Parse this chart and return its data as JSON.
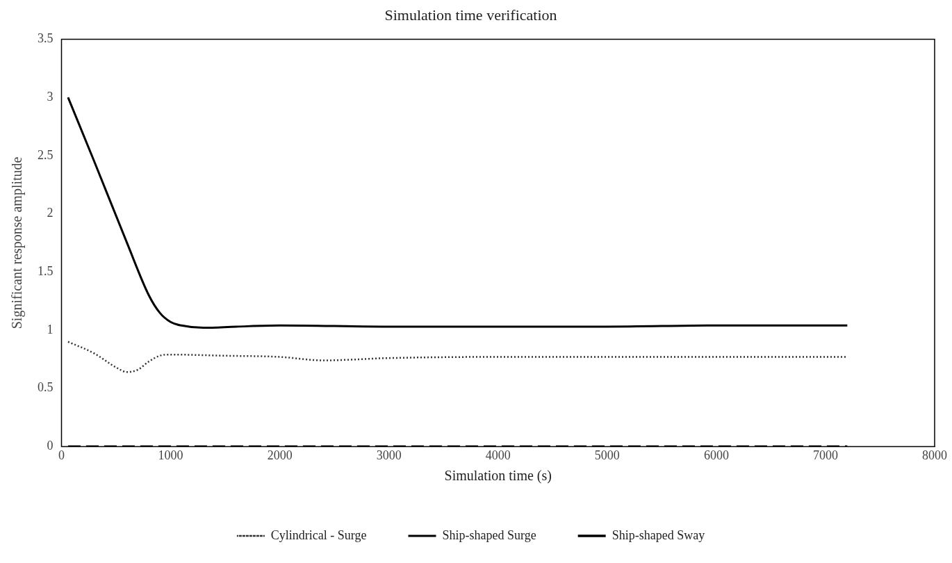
{
  "chart_data": {
    "type": "line",
    "title": "Simulation time verification",
    "xlabel": "Simulation time (s)",
    "ylabel": "Significant response amplitude",
    "xlim": [
      0,
      8000
    ],
    "xticks": [
      0,
      1000,
      2000,
      3000,
      4000,
      5000,
      6000,
      7000,
      8000
    ],
    "ylim": [
      0,
      3.5
    ],
    "yticks": [
      0,
      0.5,
      1,
      1.5,
      2,
      2.5,
      3,
      3.5
    ],
    "grid": false,
    "legend": "bottom",
    "marker": "none",
    "series": [
      {
        "name": "Cylindrical - Surge",
        "color": "#333333",
        "line_style": "dotted",
        "x": [
          60,
          300,
          500,
          600,
          700,
          800,
          900,
          1000,
          1500,
          2000,
          2400,
          3000,
          4000,
          5000,
          6000,
          7200
        ],
        "values": [
          0.9,
          0.8,
          0.68,
          0.64,
          0.66,
          0.73,
          0.78,
          0.79,
          0.78,
          0.77,
          0.74,
          0.76,
          0.77,
          0.77,
          0.77,
          0.77
        ]
      },
      {
        "name": "Ship-shaped Surge",
        "color": "#000000",
        "line_style": "solid",
        "x": [
          60,
          300,
          600,
          800,
          900,
          1000,
          1100,
          1300,
          1600,
          2000,
          3000,
          4000,
          5000,
          6000,
          7200
        ],
        "values": [
          3.0,
          2.45,
          1.75,
          1.3,
          1.15,
          1.07,
          1.04,
          1.02,
          1.03,
          1.04,
          1.03,
          1.03,
          1.03,
          1.04,
          1.04
        ]
      },
      {
        "name": "Ship-shaped Sway",
        "color": "#000000",
        "line_style": "dashed",
        "x": [
          60,
          1000,
          2000,
          3000,
          4000,
          5000,
          6000,
          7200
        ],
        "values": [
          0,
          0,
          0,
          0,
          0,
          0,
          0,
          0
        ]
      }
    ]
  }
}
